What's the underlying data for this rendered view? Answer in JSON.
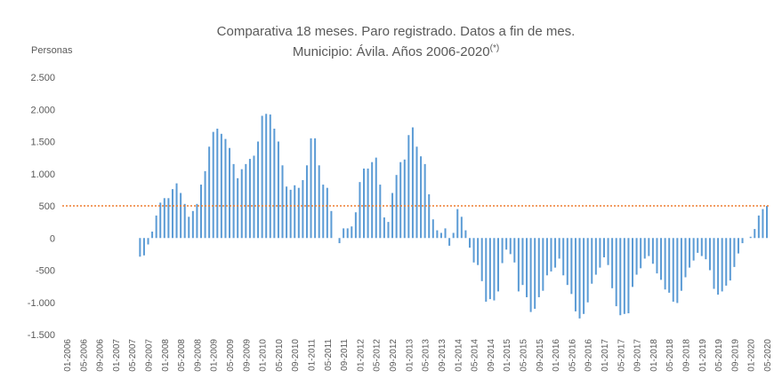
{
  "chart_data": {
    "type": "bar",
    "title": "Comparativa 18 meses. Paro registrado. Datos a fin de mes.",
    "subtitle": "Municipio: Ávila. Años 2006-2020",
    "subtitle_note": "(*)",
    "y_label": "Personas",
    "color": "#5b9bd5",
    "reference_line": 500,
    "reference_color": "#ed7d31",
    "ylim": [
      -1500,
      2500
    ],
    "yticks": [
      {
        "value": 2500,
        "label": "2.500"
      },
      {
        "value": 2000,
        "label": "2.000"
      },
      {
        "value": 1500,
        "label": "1.500"
      },
      {
        "value": 1000,
        "label": "1.000"
      },
      500,
      0,
      -500,
      {
        "value": -1000,
        "label": "-1.000"
      },
      {
        "value": -1500,
        "label": "-1.500"
      }
    ],
    "categories": [
      "01-2006",
      null,
      null,
      null,
      "05-2006",
      null,
      null,
      null,
      "09-2006",
      null,
      null,
      null,
      "01-2007",
      null,
      null,
      null,
      "05-2007",
      null,
      null,
      null,
      "09-2007",
      null,
      null,
      null,
      "01-2008",
      null,
      null,
      null,
      "05-2008",
      null,
      null,
      null,
      "09-2008",
      null,
      null,
      null,
      "01-2009",
      null,
      null,
      null,
      "05-2009",
      null,
      null,
      null,
      "09-2009",
      null,
      null,
      null,
      "01-2010",
      null,
      null,
      null,
      "05-2010",
      null,
      null,
      null,
      "09-2010",
      null,
      null,
      null,
      "01-2011",
      null,
      null,
      null,
      "05-2011",
      null,
      null,
      null,
      "09-2011",
      null,
      null,
      null,
      "01-2012",
      null,
      null,
      null,
      "05-2012",
      null,
      null,
      null,
      "09-2012",
      null,
      null,
      null,
      "01-2013",
      null,
      null,
      null,
      "05-2013",
      null,
      null,
      null,
      "09-2013",
      null,
      null,
      null,
      "01-2014",
      null,
      null,
      null,
      "05-2014",
      null,
      null,
      null,
      "09-2014",
      null,
      null,
      null,
      "01-2015",
      null,
      null,
      null,
      "05-2015",
      null,
      null,
      null,
      "09-2015",
      null,
      null,
      null,
      "01-2016",
      null,
      null,
      null,
      "05-2016",
      null,
      null,
      null,
      "09-2016",
      null,
      null,
      null,
      "01-2017",
      null,
      null,
      null,
      "05-2017",
      null,
      null,
      null,
      "09-2017",
      null,
      null,
      null,
      "01-2018",
      null,
      null,
      null,
      "05-2018",
      null,
      null,
      null,
      "09-2018",
      null,
      null,
      null,
      "01-2019",
      null,
      null,
      null,
      "05-2019",
      null,
      null,
      null,
      "09-2019",
      null,
      null,
      null,
      "01-2020",
      null,
      null,
      null,
      "05-2020"
    ],
    "values": [
      null,
      null,
      null,
      null,
      null,
      null,
      null,
      null,
      null,
      null,
      null,
      null,
      null,
      null,
      null,
      null,
      null,
      null,
      -290,
      -270,
      -100,
      100,
      350,
      550,
      620,
      620,
      760,
      850,
      700,
      530,
      330,
      420,
      530,
      830,
      1040,
      1420,
      1650,
      1700,
      1620,
      1540,
      1400,
      1150,
      930,
      1070,
      1150,
      1230,
      1280,
      1500,
      1900,
      1930,
      1920,
      1700,
      1500,
      1130,
      800,
      750,
      820,
      780,
      900,
      1130,
      1550,
      1550,
      1130,
      830,
      780,
      420,
      0,
      -80,
      150,
      150,
      180,
      400,
      870,
      1080,
      1080,
      1180,
      1250,
      830,
      320,
      250,
      700,
      980,
      1180,
      1220,
      1600,
      1720,
      1420,
      1270,
      1150,
      680,
      290,
      120,
      80,
      150,
      -120,
      80,
      450,
      330,
      120,
      -150,
      -380,
      -420,
      -670,
      -990,
      -950,
      -970,
      -830,
      -390,
      -180,
      -250,
      -380,
      -830,
      -730,
      -920,
      -1150,
      -1100,
      -920,
      -820,
      -580,
      -520,
      -460,
      -320,
      -580,
      -730,
      -870,
      -1140,
      -1250,
      -1180,
      -1000,
      -710,
      -570,
      -460,
      -300,
      -420,
      -780,
      -1060,
      -1200,
      -1180,
      -1170,
      -760,
      -570,
      -470,
      -320,
      -280,
      -400,
      -550,
      -650,
      -800,
      -850,
      -990,
      -1010,
      -820,
      -610,
      -460,
      -350,
      -230,
      -280,
      -330,
      -500,
      -790,
      -880,
      -830,
      -740,
      -660,
      -450,
      -240,
      -80,
      0,
      20,
      140,
      350,
      450,
      500
    ]
  }
}
